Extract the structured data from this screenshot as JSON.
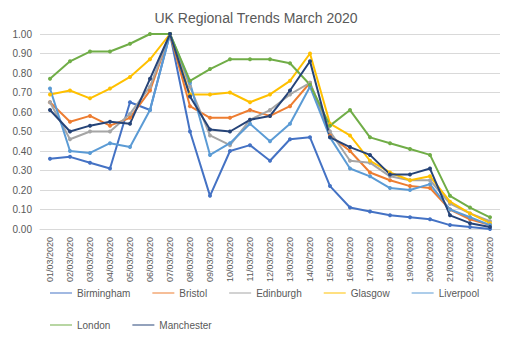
{
  "chart_data": {
    "type": "line",
    "title": "UK Regional Trends March 2020",
    "categories": [
      "01/03/2020",
      "02/03/2020",
      "03/03/2020",
      "04/03/2020",
      "05/03/2020",
      "06/03/2020",
      "07/03/2020",
      "08/03/2020",
      "09/03/2020",
      "10/03/2020",
      "11/03/2020",
      "12/03/2020",
      "13/03/2020",
      "14/03/2020",
      "15/03/2020",
      "16/03/2020",
      "17/03/2020",
      "18/03/2020",
      "19/03/2020",
      "20/03/2020",
      "21/03/2020",
      "22/03/2020",
      "23/03/2020"
    ],
    "series": [
      {
        "name": "Birmingham",
        "color": "#4472c4",
        "values": [
          0.36,
          0.37,
          0.34,
          0.31,
          0.65,
          0.61,
          1.0,
          0.5,
          0.17,
          0.4,
          0.43,
          0.35,
          0.46,
          0.47,
          0.22,
          0.11,
          0.09,
          0.07,
          0.06,
          0.05,
          0.02,
          0.01,
          0.0
        ]
      },
      {
        "name": "Bristol",
        "color": "#ed7d31",
        "values": [
          0.65,
          0.55,
          0.58,
          0.53,
          0.57,
          0.71,
          1.0,
          0.63,
          0.57,
          0.57,
          0.61,
          0.58,
          0.63,
          0.75,
          0.48,
          0.4,
          0.29,
          0.25,
          0.22,
          0.21,
          0.1,
          0.05,
          0.02
        ]
      },
      {
        "name": "Edinburgh",
        "color": "#a5a5a5",
        "values": [
          0.65,
          0.46,
          0.5,
          0.5,
          0.59,
          0.73,
          1.0,
          0.73,
          0.48,
          0.43,
          0.56,
          0.61,
          0.69,
          0.75,
          0.5,
          0.35,
          0.34,
          0.27,
          0.25,
          0.25,
          0.13,
          0.08,
          0.04
        ]
      },
      {
        "name": "Glasgow",
        "color": "#ffc000",
        "values": [
          0.69,
          0.71,
          0.67,
          0.72,
          0.78,
          0.87,
          1.0,
          0.69,
          0.69,
          0.7,
          0.65,
          0.69,
          0.76,
          0.9,
          0.54,
          0.48,
          0.35,
          0.29,
          0.25,
          0.27,
          0.14,
          0.08,
          0.03
        ]
      },
      {
        "name": "Liverpool",
        "color": "#5b9bd5",
        "values": [
          0.72,
          0.4,
          0.39,
          0.44,
          0.42,
          0.61,
          1.0,
          0.75,
          0.38,
          0.44,
          0.54,
          0.45,
          0.54,
          0.73,
          0.47,
          0.31,
          0.27,
          0.21,
          0.2,
          0.23,
          0.1,
          0.06,
          0.02
        ]
      },
      {
        "name": "London",
        "color": "#70ad47",
        "values": [
          0.77,
          0.86,
          0.91,
          0.91,
          0.95,
          1.0,
          1.0,
          0.76,
          0.82,
          0.87,
          0.87,
          0.87,
          0.85,
          0.74,
          0.53,
          0.61,
          0.47,
          0.44,
          0.41,
          0.38,
          0.17,
          0.11,
          0.06
        ]
      },
      {
        "name": "Manchester",
        "color": "#264478",
        "values": [
          0.61,
          0.5,
          0.53,
          0.55,
          0.54,
          0.77,
          1.0,
          0.68,
          0.51,
          0.5,
          0.56,
          0.58,
          0.71,
          0.86,
          0.47,
          0.42,
          0.38,
          0.28,
          0.28,
          0.31,
          0.07,
          0.03,
          0.01
        ]
      }
    ],
    "ylim": [
      0,
      1
    ],
    "yticks": [
      {
        "value": 0,
        "label": "0.00"
      },
      {
        "value": 0.1,
        "label": "0.10"
      },
      {
        "value": 0.2,
        "label": "0.20"
      },
      {
        "value": 0.3,
        "label": "0.30"
      },
      {
        "value": 0.4,
        "label": "0.40"
      },
      {
        "value": 0.5,
        "label": "0.50"
      },
      {
        "value": 0.6,
        "label": "0.60"
      },
      {
        "value": 0.7,
        "label": "0.70"
      },
      {
        "value": 0.8,
        "label": "0.80"
      },
      {
        "value": 0.9,
        "label": "0.90"
      },
      {
        "value": 1,
        "label": "1.00"
      }
    ],
    "grid": true,
    "legend": "bottom",
    "marker": "circle"
  }
}
